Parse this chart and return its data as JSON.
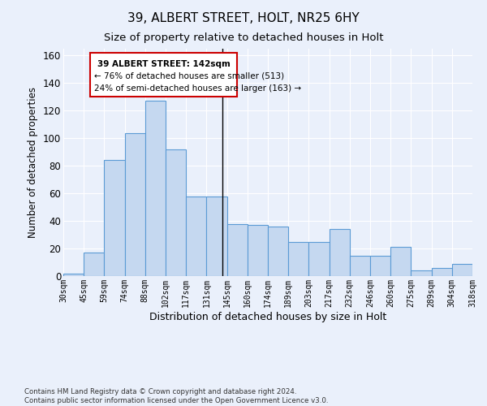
{
  "title": "39, ALBERT STREET, HOLT, NR25 6HY",
  "subtitle": "Size of property relative to detached houses in Holt",
  "xlabel": "Distribution of detached houses by size in Holt",
  "ylabel": "Number of detached properties",
  "bin_labels": [
    "30sqm",
    "45sqm",
    "59sqm",
    "74sqm",
    "88sqm",
    "102sqm",
    "117sqm",
    "131sqm",
    "145sqm",
    "160sqm",
    "174sqm",
    "189sqm",
    "203sqm",
    "217sqm",
    "232sqm",
    "246sqm",
    "260sqm",
    "275sqm",
    "289sqm",
    "304sqm",
    "318sqm"
  ],
  "heights": [
    2,
    17,
    84,
    104,
    127,
    92,
    58,
    58,
    38,
    37,
    36,
    25,
    25,
    34,
    15,
    15,
    21,
    4,
    6,
    9
  ],
  "bar_color": "#c5d8f0",
  "bar_edge_color": "#5b9bd5",
  "background_color": "#eaf0fb",
  "annotation_text_line1": "39 ALBERT STREET: 142sqm",
  "annotation_text_line2": "← 76% of detached houses are smaller (513)",
  "annotation_text_line3": "24% of semi-detached houses are larger (163) →",
  "annotation_box_color": "#cc0000",
  "ylim": [
    0,
    165
  ],
  "yticks": [
    0,
    20,
    40,
    60,
    80,
    100,
    120,
    140,
    160
  ],
  "footer_line1": "Contains HM Land Registry data © Crown copyright and database right 2024.",
  "footer_line2": "Contains public sector information licensed under the Open Government Licence v3.0."
}
